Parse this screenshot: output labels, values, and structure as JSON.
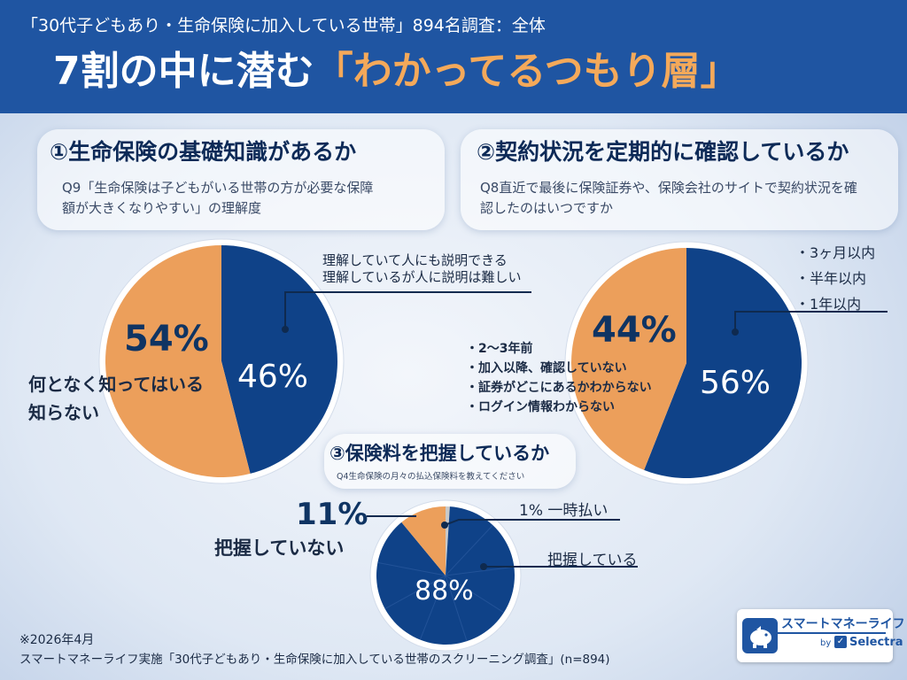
{
  "header": {
    "survey": "「30代子どもあり・生命保険に加入している世帯」894名調査：全体",
    "title_main": "7割の中に潜む",
    "title_hl": "「わかってるつもり層」"
  },
  "q1": {
    "title": "①生命保険の基礎知識があるか",
    "question_l1": "Q9「生命保険は子どもがいる世帯の方が必要な保障",
    "question_l2": "額が大きくなりやすい」の理解度",
    "pct_orange": "54%",
    "pct_blue": "46%",
    "label_orange_l1": "何となく知ってはいる",
    "label_orange_l2": "知らない",
    "label_blue_l1": "理解していて人にも説明できる",
    "label_blue_l2": "理解しているが人に説明は難しい"
  },
  "q2": {
    "title": "②契約状況を定期的に確認しているか",
    "question_l1": "Q8直近で最後に保険証券や、保険会社のサイトで契約状況を確",
    "question_l2": "認したのはいつですか",
    "pct_orange": "44%",
    "pct_blue": "56%",
    "blue_items": [
      "・3ヶ月以内",
      "・半年以内",
      "・1年以内"
    ],
    "orange_items": [
      "・2〜3年前",
      "・加入以降、確認していない",
      "・証券がどこにあるかわからない",
      "・ログイン情報わからない"
    ]
  },
  "q3": {
    "title": "③保険料を把握しているか",
    "question": "Q4生命保険の月々の払込保険料を教えてください",
    "pct_orange": "11%",
    "pct_blue": "88%",
    "label_orange": "把握していない",
    "label_gray": "1% 一時払い",
    "label_blue": "把握している"
  },
  "footer": {
    "date": "※2026年4月",
    "source": "スマートマネーライフ実施「30代子どもあり・生命保険に加入している世帯のスクリーニング調査」(n=894)"
  },
  "logo": {
    "name": "スマートマネーライフ",
    "by": "by",
    "brand": "Selectra"
  },
  "colors": {
    "blue": "#0f4288",
    "orange": "#ec9f5b",
    "gray": "#c9c9c9",
    "header": "#1f55a2"
  },
  "chart_data": [
    {
      "type": "pie",
      "title": "①生命保険の基礎知識があるか",
      "categories": [
        "理解していて人にも説明できる / 理解しているが人に説明は難しい",
        "何となく知ってはいる / 知らない"
      ],
      "values": [
        46,
        54
      ]
    },
    {
      "type": "pie",
      "title": "②契約状況を定期的に確認しているか",
      "categories": [
        "3ヶ月以内 / 半年以内 / 1年以内",
        "2〜3年前 / 加入以降、確認していない / 証券がどこにあるかわからない / ログイン情報わからない"
      ],
      "values": [
        56,
        44
      ]
    },
    {
      "type": "pie",
      "title": "③保険料を把握しているか",
      "categories": [
        "一時払い",
        "把握している",
        "把握していない"
      ],
      "values": [
        1,
        88,
        11
      ]
    }
  ]
}
